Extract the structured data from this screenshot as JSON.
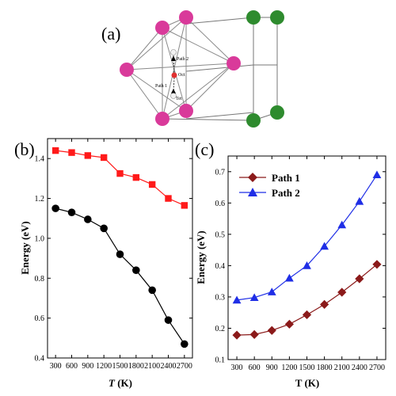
{
  "panel_labels": {
    "a": "(a)",
    "b": "(b)",
    "c": "(c)"
  },
  "structure": {
    "site_labels": [
      "Path 2",
      "Path 1",
      "Oct",
      "Tet"
    ],
    "colors": {
      "host_atom": "#d93a9a",
      "second_atom": "#2e8b2e",
      "octahedral_site": "#e03030",
      "tetrahedral_site": "#f2f2f2"
    }
  },
  "chart_data": [
    {
      "type": "line",
      "panel": "(b)",
      "x": [
        300,
        600,
        900,
        1200,
        1500,
        1800,
        2100,
        2400,
        2700
      ],
      "x_tick_labels": [
        "300",
        "600",
        "900",
        "1200",
        "1500",
        "1800",
        "2100",
        "2400",
        "2700"
      ],
      "series": [
        {
          "color": "#ff1a1a",
          "marker": "square",
          "values": [
            1.44,
            1.43,
            1.415,
            1.405,
            1.325,
            1.305,
            1.27,
            1.2,
            1.165
          ]
        },
        {
          "color": "#000000",
          "marker": "circle",
          "values": [
            1.15,
            1.13,
            1.095,
            1.05,
            0.92,
            0.84,
            0.74,
            0.59,
            0.47
          ]
        }
      ],
      "xlabel_italic": "T",
      "xlabel_unit": " (K)",
      "ylabel": "Energy (eV)",
      "xlim": [
        150,
        2850
      ],
      "ylim": [
        0.4,
        1.5
      ],
      "y_ticks": [
        0.4,
        0.6,
        0.8,
        1.0,
        1.2,
        1.4
      ],
      "y_tick_labels": [
        "0.4",
        "0.6",
        "0.8",
        "1.0",
        "1.2",
        "1.4"
      ],
      "grid": false,
      "legend": "none"
    },
    {
      "type": "line",
      "panel": "(c)",
      "x": [
        300,
        600,
        900,
        1200,
        1500,
        1800,
        2100,
        2400,
        2700
      ],
      "x_tick_labels": [
        "300",
        "600",
        "900",
        "1200",
        "1500",
        "1800",
        "2100",
        "2400",
        "2700"
      ],
      "series": [
        {
          "name": "Path 1",
          "color": "#8b1a1a",
          "marker": "diamond",
          "values": [
            0.178,
            0.18,
            0.193,
            0.213,
            0.243,
            0.276,
            0.315,
            0.358,
            0.404
          ]
        },
        {
          "name": "Path 2",
          "color": "#1f2ee6",
          "marker": "triangle",
          "values": [
            0.29,
            0.298,
            0.316,
            0.36,
            0.4,
            0.462,
            0.53,
            0.605,
            0.69
          ]
        }
      ],
      "xlabel": "T (K)",
      "ylabel": "Energy (eV)",
      "xlim": [
        150,
        2850
      ],
      "ylim": [
        0.1,
        0.75
      ],
      "y_ticks": [
        0.1,
        0.2,
        0.3,
        0.4,
        0.5,
        0.6,
        0.7
      ],
      "y_tick_labels": [
        "0.1",
        "0.2",
        "0.3",
        "0.4",
        "0.5",
        "0.6",
        "0.7"
      ],
      "grid": false,
      "legend": "top-left"
    }
  ]
}
